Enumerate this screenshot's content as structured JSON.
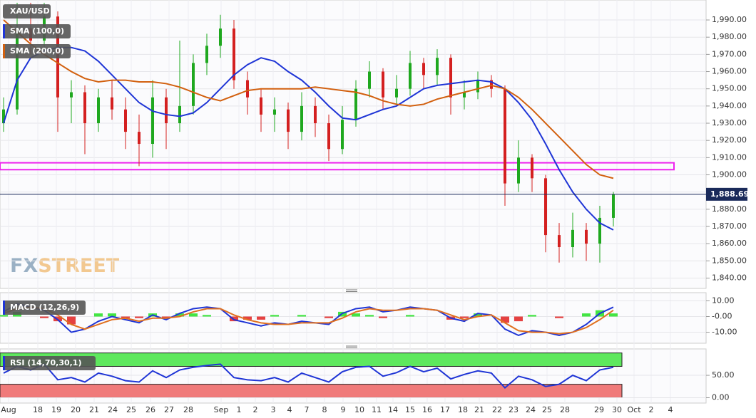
{
  "chart_data": [
    {
      "type": "candlestick",
      "legend": [
        "XAU/USD",
        "SMA (100,0)",
        "SMA (200,0)"
      ],
      "watermark": [
        "FX",
        "STREET"
      ],
      "date_ticks": [
        "Aug",
        "18",
        "19",
        "20",
        "21",
        "24",
        "25",
        "26",
        "27",
        "28",
        "Sep",
        "1",
        "2",
        "3",
        "4",
        "7",
        "8",
        "9",
        "10",
        "11",
        "14",
        "15",
        "16",
        "17",
        "18",
        "21",
        "22",
        "23",
        "24",
        "25",
        "28",
        "29",
        "30",
        "Oct",
        "2",
        "4"
      ],
      "ylim": [
        1834,
        2001.6
      ],
      "yticks": [
        {
          "value": 1840,
          "label": "1,840.00"
        },
        {
          "value": 1850,
          "label": "1,850.00"
        },
        {
          "value": 1860,
          "label": "1,860.00"
        },
        {
          "value": 1870,
          "label": "1,870.00"
        },
        {
          "value": 1880,
          "label": "1,880.00"
        },
        {
          "value": 1890,
          "label": "1,890.00"
        },
        {
          "value": 1900,
          "label": "1,900.00"
        },
        {
          "value": 1910,
          "label": "1,910.00"
        },
        {
          "value": 1920,
          "label": "1,920.00"
        },
        {
          "value": 1930,
          "label": "1,930.00"
        },
        {
          "value": 1940,
          "label": "1,940.00"
        },
        {
          "value": 1950,
          "label": "1,950.00"
        },
        {
          "value": 1960,
          "label": "1,960.00"
        },
        {
          "value": 1970,
          "label": "1,970.00"
        },
        {
          "value": 1980,
          "label": "1,980.00"
        },
        {
          "value": 1990,
          "label": "1,990.00"
        }
      ],
      "last_price": {
        "value": 1888.69,
        "label": "1,888.69"
      },
      "zone": [
        1903,
        1907
      ],
      "ohlc": [
        [
          1930,
          1945,
          1925,
          1938
        ],
        [
          1938,
          2000,
          1935,
          1985
        ],
        [
          1985,
          2000,
          1970,
          1978
        ],
        [
          1978,
          2000,
          1972,
          1992
        ],
        [
          1992,
          1995,
          1925,
          1945
        ],
        [
          1945,
          1955,
          1930,
          1948
        ],
        [
          1948,
          1952,
          1912,
          1930
        ],
        [
          1930,
          1950,
          1925,
          1945
        ],
        [
          1945,
          1955,
          1932,
          1938
        ],
        [
          1938,
          1945,
          1915,
          1925
        ],
        [
          1925,
          1935,
          1905,
          1918
        ],
        [
          1918,
          1955,
          1910,
          1945
        ],
        [
          1945,
          1950,
          1915,
          1930
        ],
        [
          1930,
          1978,
          1925,
          1940
        ],
        [
          1940,
          1970,
          1935,
          1965
        ],
        [
          1965,
          1982,
          1958,
          1975
        ],
        [
          1975,
          1993,
          1968,
          1985
        ],
        [
          1985,
          1990,
          1950,
          1955
        ],
        [
          1955,
          1960,
          1935,
          1945
        ],
        [
          1945,
          1950,
          1925,
          1935
        ],
        [
          1935,
          1945,
          1925,
          1938
        ],
        [
          1938,
          1942,
          1915,
          1925
        ],
        [
          1925,
          1948,
          1920,
          1940
        ],
        [
          1940,
          1945,
          1922,
          1930
        ],
        [
          1930,
          1935,
          1908,
          1915
        ],
        [
          1915,
          1940,
          1912,
          1932
        ],
        [
          1932,
          1955,
          1928,
          1950
        ],
        [
          1950,
          1966,
          1945,
          1960
        ],
        [
          1960,
          1962,
          1938,
          1945
        ],
        [
          1945,
          1958,
          1940,
          1950
        ],
        [
          1950,
          1972,
          1946,
          1965
        ],
        [
          1965,
          1968,
          1950,
          1958
        ],
        [
          1958,
          1973,
          1952,
          1968
        ],
        [
          1968,
          1970,
          1935,
          1945
        ],
        [
          1945,
          1955,
          1938,
          1948
        ],
        [
          1948,
          1960,
          1944,
          1955
        ],
        [
          1955,
          1958,
          1945,
          1950
        ],
        [
          1950,
          1952,
          1882,
          1895
        ],
        [
          1895,
          1920,
          1890,
          1910
        ],
        [
          1910,
          1912,
          1890,
          1898
        ],
        [
          1898,
          1900,
          1855,
          1865
        ],
        [
          1865,
          1872,
          1849,
          1858
        ],
        [
          1858,
          1878,
          1852,
          1868
        ],
        [
          1868,
          1872,
          1850,
          1860
        ],
        [
          1860,
          1882,
          1849,
          1875
        ],
        [
          1875,
          1890,
          1870,
          1888.69
        ]
      ],
      "up_color": "#1fa81f",
      "down_color": "#d42020",
      "series": [
        {
          "name": "SMA (100,0)",
          "color": "#1f35d6",
          "values": [
            1930,
            1955,
            1968,
            1972,
            1974,
            1974,
            1972,
            1966,
            1958,
            1950,
            1942,
            1937,
            1935,
            1934,
            1936,
            1942,
            1950,
            1958,
            1964,
            1968,
            1966,
            1960,
            1955,
            1948,
            1940,
            1933,
            1932,
            1935,
            1938,
            1940,
            1945,
            1950,
            1952,
            1953,
            1954,
            1955,
            1954,
            1950,
            1942,
            1932,
            1918,
            1903,
            1890,
            1880,
            1872,
            1868
          ]
        },
        {
          "name": "SMA (200,0)",
          "color": "#d2600f",
          "values": [
            1990,
            1983,
            1976,
            1970,
            1965,
            1960,
            1956,
            1954,
            1955,
            1955,
            1954,
            1954,
            1953,
            1951,
            1948,
            1945,
            1943,
            1946,
            1949,
            1950,
            1950,
            1950,
            1950,
            1951,
            1950,
            1949,
            1948,
            1946,
            1943,
            1941,
            1940,
            1941,
            1944,
            1946,
            1948,
            1950,
            1952,
            1950,
            1945,
            1938,
            1930,
            1922,
            1914,
            1906,
            1900,
            1898
          ]
        }
      ]
    },
    {
      "type": "macd",
      "legend": [
        "MACD (12,26,9)"
      ],
      "ylim": [
        -17,
        15.2
      ],
      "yticks": [
        {
          "value": 10,
          "label": "10.00"
        },
        {
          "value": 0,
          "label": "-0.00"
        },
        {
          "value": -10,
          "label": "-10.00"
        }
      ],
      "histogram": {
        "up_color": "#22e022",
        "down_color": "#e02020",
        "values": [
          1,
          3,
          0,
          -1,
          -3,
          -5,
          0,
          2,
          2,
          -1,
          -1,
          2,
          -1,
          2,
          2,
          1,
          0,
          -3,
          -2,
          -2,
          1,
          0,
          1,
          0,
          -1,
          3,
          2,
          1,
          -1,
          0,
          1,
          0,
          0,
          -2,
          -1,
          2,
          0,
          -4,
          -3,
          1,
          0,
          -1,
          0,
          2,
          4,
          2
        ]
      },
      "series": [
        {
          "name": "MACD",
          "color": "#1f35d6",
          "values": [
            3,
            8,
            6,
            4,
            -2,
            -10,
            -8,
            -3,
            0,
            -2,
            -4,
            1,
            -2,
            2,
            5,
            6,
            5,
            -2,
            -4,
            -6,
            -4,
            -5,
            -3,
            -4,
            -5,
            2,
            5,
            6,
            3,
            4,
            6,
            5,
            4,
            -1,
            -3,
            2,
            1,
            -8,
            -12,
            -9,
            -10,
            -12,
            -10,
            -5,
            2,
            6
          ]
        },
        {
          "name": "Signal",
          "color": "#e07020",
          "values": [
            2,
            5,
            6,
            5,
            1,
            -5,
            -8,
            -5,
            -2,
            -1,
            -3,
            -1,
            -1,
            0,
            3,
            5,
            5,
            1,
            -2,
            -4,
            -5,
            -5,
            -4,
            -4,
            -4,
            -1,
            3,
            5,
            4,
            4,
            5,
            5,
            4,
            1,
            -2,
            0,
            1,
            -4,
            -9,
            -10,
            -10,
            -11,
            -10,
            -7,
            -2,
            4
          ]
        }
      ]
    },
    {
      "type": "rsi",
      "legend": [
        "RSI (14,70,30,1)"
      ],
      "ylim": [
        -12,
        109
      ],
      "yticks": [
        {
          "value": 50,
          "label": "50.00"
        },
        {
          "value": 0,
          "label": "0.00"
        }
      ],
      "overbought": [
        70,
        100
      ],
      "oversold": [
        0,
        30
      ],
      "overbought_color": "#5ee85e",
      "oversold_color": "#f07a7a",
      "series": [
        {
          "name": "RSI",
          "color": "#1f35d6",
          "values": [
            55,
            70,
            62,
            75,
            40,
            45,
            35,
            55,
            48,
            38,
            35,
            60,
            45,
            62,
            68,
            72,
            75,
            45,
            40,
            38,
            45,
            35,
            55,
            45,
            35,
            58,
            68,
            70,
            48,
            56,
            70,
            58,
            66,
            42,
            52,
            60,
            55,
            22,
            48,
            40,
            25,
            30,
            50,
            38,
            62,
            68
          ]
        }
      ]
    }
  ]
}
